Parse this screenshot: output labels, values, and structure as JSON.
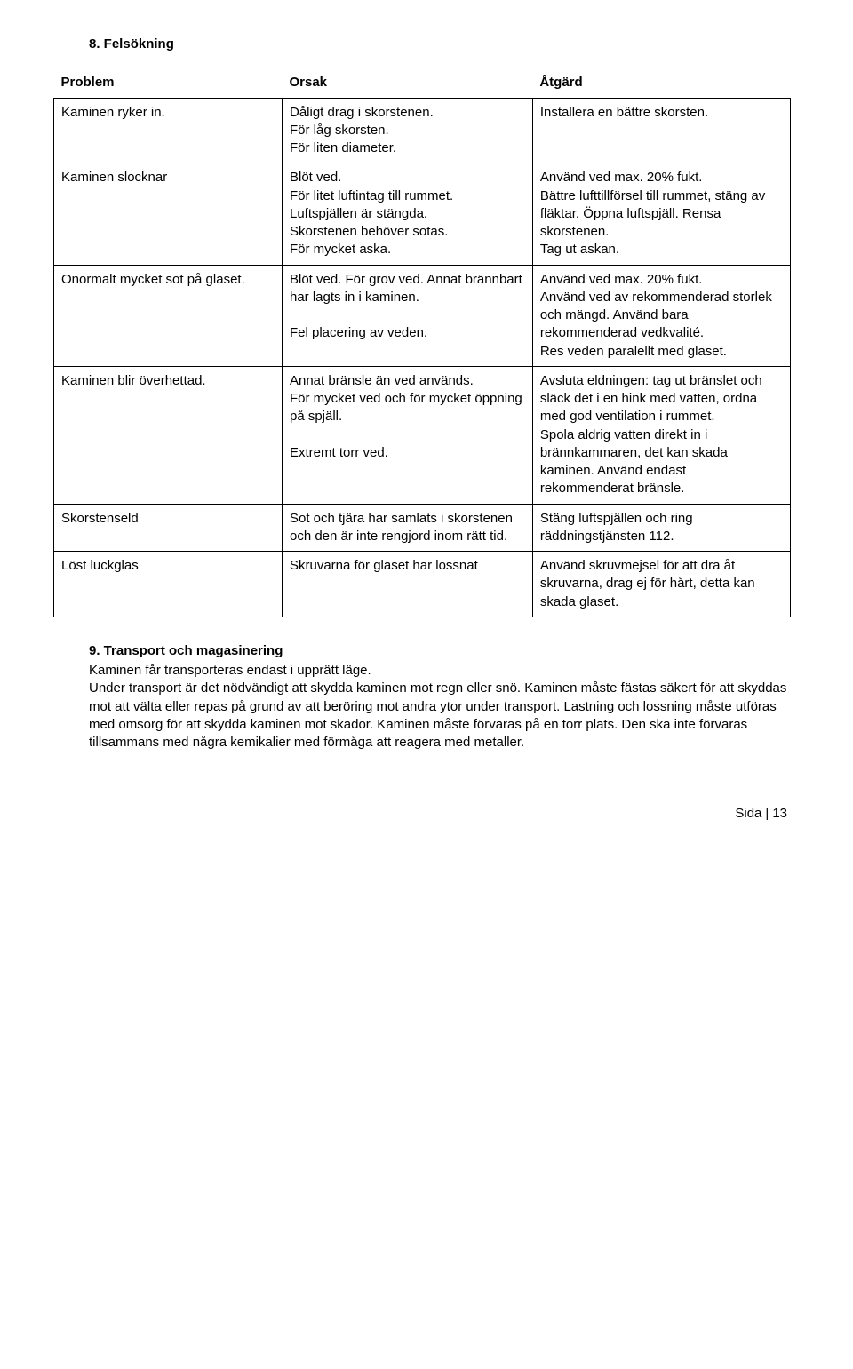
{
  "section8_title": "8. Felsökning",
  "headers": {
    "c1": "Problem",
    "c2": "Orsak",
    "c3": "Åtgärd"
  },
  "rows": [
    {
      "p": "Kaminen  ryker in.",
      "o": "Dåligt drag i skorstenen.\nFör låg skorsten.\nFör liten diameter.",
      "a": "Installera en bättre skorsten."
    },
    {
      "p": "Kaminen slocknar",
      "o": "Blöt ved.\nFör litet luftintag till rummet.\nLuftspjällen är stängda.\nSkorstenen behöver sotas.\nFör mycket aska.",
      "a": "Använd ved max. 20% fukt.\nBättre lufttillförsel till rummet, stäng av fläktar. Öppna luftspjäll. Rensa skorstenen.\nTag ut askan."
    },
    {
      "p": "Onormalt mycket sot på glaset.",
      "o": "Blöt ved. För grov ved. Annat brännbart har lagts in i kaminen.\n\nFel placering av veden.",
      "a": "Använd ved max. 20% fukt.\nAnvänd ved av rekommenderad storlek och mängd. Använd bara rekommenderad vedkvalité.\nRes veden paralellt med glaset."
    },
    {
      "p": "Kaminen blir överhettad.",
      "o": "Annat bränsle än ved används.\nFör mycket ved och för mycket öppning på spjäll.\n\n Extremt torr ved.",
      "a": "Avsluta eldningen: tag ut bränslet och släck det i en hink med vatten, ordna med god ventilation i rummet.\nSpola aldrig vatten direkt in i brännkammaren, det kan skada kaminen.  Använd endast  rekommenderat bränsle."
    },
    {
      "p": "Skorstenseld",
      "o": "Sot och tjära har samlats i skorstenen och den är inte rengjord inom rätt tid.",
      "a": "Stäng luftspjällen och ring räddningstjänsten 112."
    },
    {
      "p": "Löst luckglas",
      "o": "Skruvarna för glaset har lossnat",
      "a": "Använd skruvmejsel för att dra åt skruvarna, drag ej för hårt, detta kan skada glaset."
    }
  ],
  "section9_title": "9. Transport och magasinering",
  "section9_body": "Kaminen får transporteras endast i upprätt läge.\nUnder transport är det nödvändigt att skydda kaminen mot regn eller snö. Kaminen måste fästas säkert för att skyddas mot att välta eller repas på grund av att beröring mot andra ytor under transport. Lastning och lossning måste utföras med omsorg för att skydda kaminen mot skador. Kaminen måste förvaras på en torr plats. Den ska inte förvaras tillsammans med några kemikalier med förmåga att reagera med metaller.",
  "footer": {
    "label": "Sida",
    "sep": "|",
    "page": "13"
  }
}
